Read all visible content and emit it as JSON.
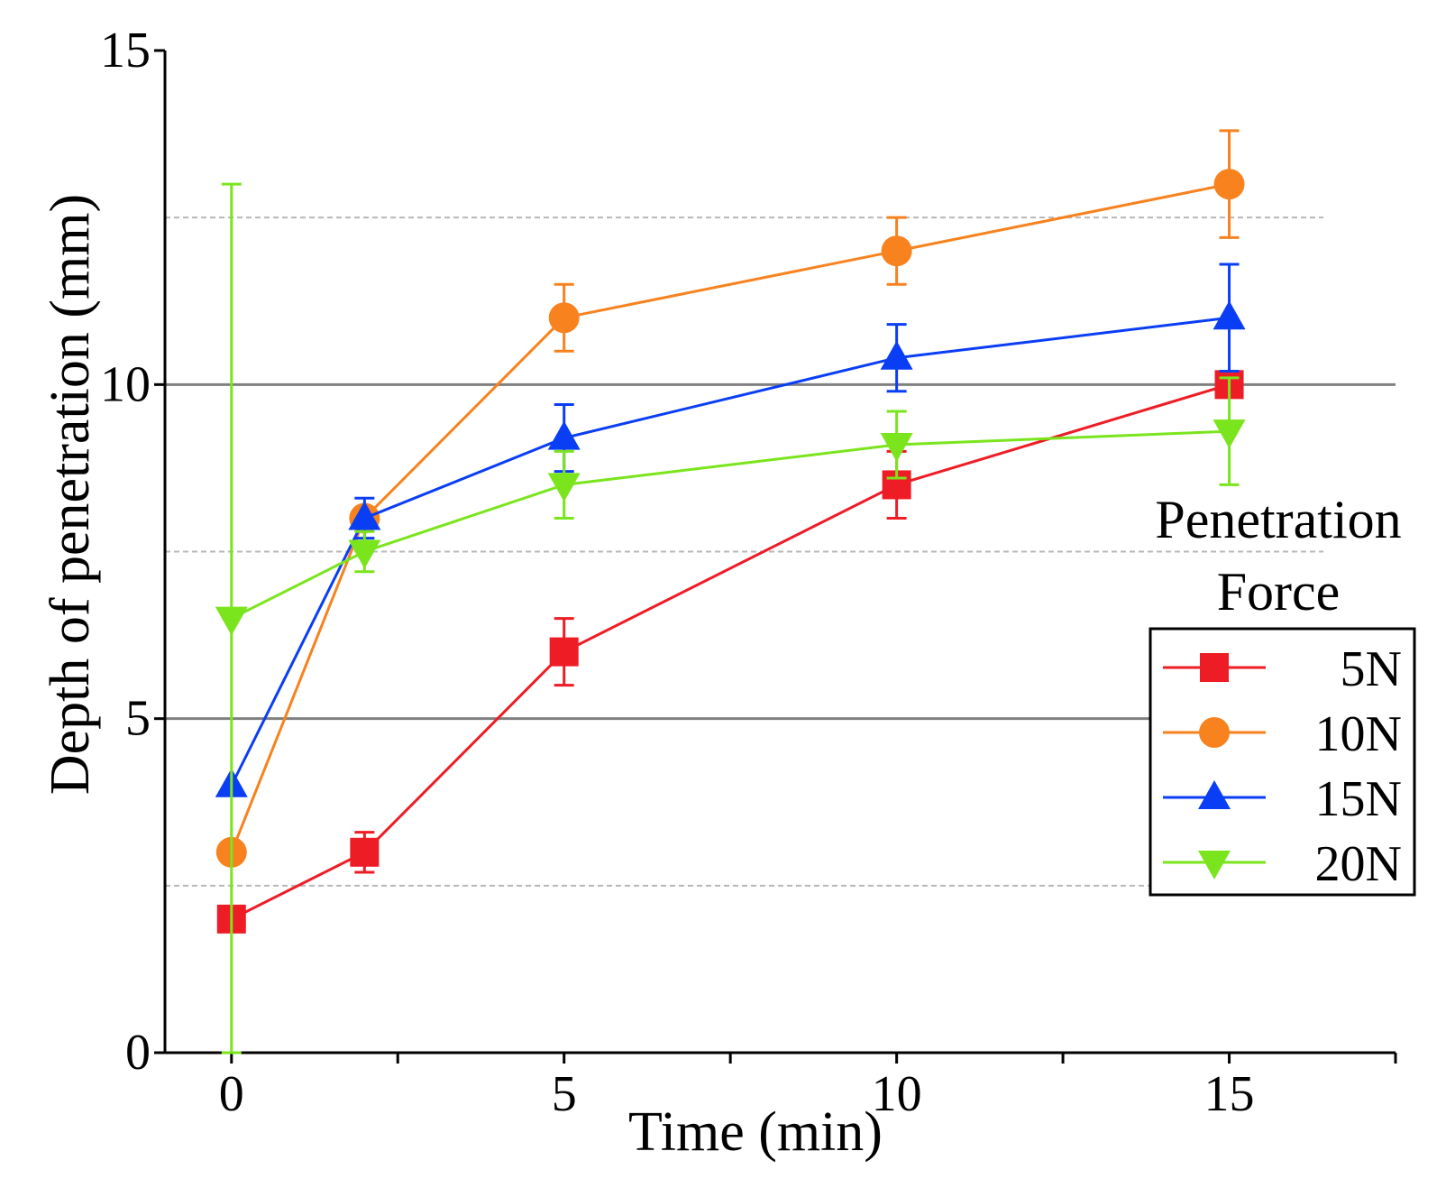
{
  "chart_data": {
    "type": "line",
    "title": "",
    "xlabel": "Time (min)",
    "ylabel": "Depth of penetration (mm)",
    "xlim": [
      -1,
      17.5
    ],
    "ylim": [
      0,
      15
    ],
    "xticks": [
      0,
      5,
      10,
      15
    ],
    "xtick_labels": [
      "0",
      "5",
      "10",
      "15"
    ],
    "xminor_ticks": [
      2.5,
      7.5,
      12.5,
      17.5
    ],
    "yticks": [
      0,
      5,
      10,
      15
    ],
    "ytick_labels": [
      "0",
      "5",
      "10",
      "15"
    ],
    "major_gridlines_y": [
      5,
      10
    ],
    "minor_gridlines_y": [
      2.5,
      7.5,
      12.5
    ],
    "legend": {
      "title_lines": [
        "Penetration",
        "Force"
      ],
      "position": "right"
    },
    "series": [
      {
        "name": "5N",
        "color": "#ee1c25",
        "marker": "square",
        "x": [
          0,
          2,
          5,
          10,
          15
        ],
        "values": [
          2.0,
          3.0,
          6.0,
          8.5,
          10.0
        ],
        "errors": [
          0.0,
          0.3,
          0.5,
          0.5,
          0.0
        ]
      },
      {
        "name": "10N",
        "color": "#f7821e",
        "marker": "circle",
        "x": [
          0,
          2,
          5,
          10,
          15
        ],
        "values": [
          3.0,
          8.0,
          11.0,
          12.0,
          13.0
        ],
        "errors": [
          0.0,
          0.0,
          0.5,
          0.5,
          0.8
        ]
      },
      {
        "name": "15N",
        "color": "#0a3ef5",
        "marker": "triangle-up",
        "x": [
          0,
          2,
          5,
          10,
          15
        ],
        "values": [
          4.0,
          8.0,
          9.2,
          10.4,
          11.0
        ],
        "errors": [
          0.0,
          0.3,
          0.5,
          0.5,
          0.8
        ]
      },
      {
        "name": "20N",
        "color": "#7ae51c",
        "marker": "triangle-down",
        "x": [
          0,
          2,
          5,
          10,
          15
        ],
        "values": [
          6.5,
          7.5,
          8.5,
          9.1,
          9.3
        ],
        "errors": [
          6.5,
          0.3,
          0.5,
          0.5,
          0.8
        ]
      }
    ]
  }
}
